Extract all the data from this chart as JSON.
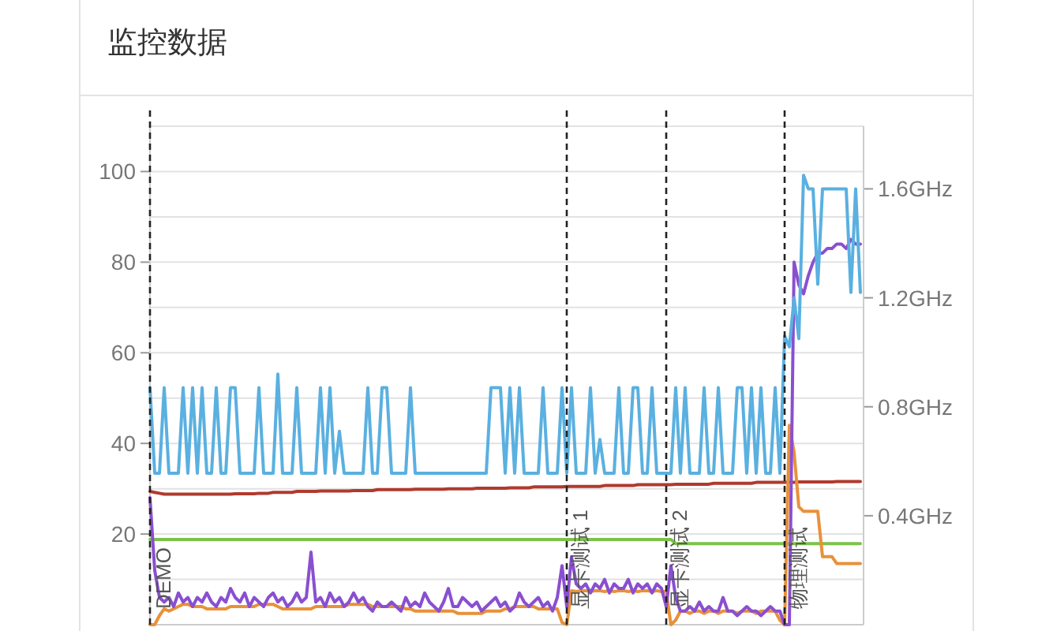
{
  "chart_data": {
    "type": "line",
    "title": "监控数据",
    "categories": [
      null,
      null,
      null,
      null,
      null,
      null,
      null,
      null,
      null,
      null,
      null,
      null,
      null,
      null,
      null,
      null,
      null,
      null,
      null,
      null,
      null,
      null,
      null,
      null,
      null,
      null,
      null,
      null,
      null,
      null,
      null,
      null,
      null,
      null,
      null,
      null,
      null,
      null,
      null,
      null,
      null,
      null,
      null,
      null,
      null,
      null,
      null,
      null,
      null,
      null,
      null,
      null,
      null,
      null,
      null,
      null,
      null,
      null,
      null,
      null,
      null,
      null,
      null,
      null,
      null,
      null,
      null,
      null,
      null,
      null,
      null,
      null,
      null,
      null,
      null,
      null,
      null,
      null,
      null,
      null,
      null,
      null,
      null,
      null,
      null,
      null,
      null,
      null,
      null,
      null,
      null,
      null,
      null,
      null,
      null,
      null,
      null,
      null,
      null,
      null,
      null,
      null,
      null,
      null,
      null,
      null,
      null,
      null,
      null,
      null,
      null,
      null,
      null,
      null,
      null,
      null,
      null,
      null,
      null,
      null,
      null,
      null,
      null,
      null,
      null,
      null,
      null,
      null,
      null,
      null,
      null,
      null,
      null,
      null,
      null,
      null,
      null,
      null,
      null,
      null,
      null,
      null,
      null,
      null,
      null,
      null,
      null,
      null,
      null,
      null,
      null
    ],
    "ylim": [
      0,
      110
    ],
    "yticks": [
      {
        "value": 0,
        "label": null
      },
      {
        "value": 10,
        "label": null
      },
      20,
      {
        "value": 30,
        "label": null
      },
      40,
      {
        "value": 50,
        "label": null
      },
      60,
      {
        "value": 70,
        "label": null
      },
      80,
      {
        "value": 90,
        "label": null
      },
      100,
      {
        "value": 110,
        "label": null
      }
    ],
    "y2lim": [
      0,
      1.83
    ],
    "y2ticks": [
      {
        "value": 0.4,
        "label": "0.4GHz"
      },
      {
        "value": 0.8,
        "label": "0.8GHz"
      },
      {
        "value": 1.2,
        "label": "1.2GHz"
      },
      {
        "value": 1.6,
        "label": "1.6GHz"
      }
    ],
    "grid": "y",
    "annotations": [
      "DEMO",
      "显卡测试 1",
      "显卡测试 2",
      "物理测试"
    ],
    "series": [
      {
        "color": "#b03a2e",
        "values": [
          29.4,
          29.2,
          29.0,
          28.8,
          28.8,
          28.8,
          28.8,
          28.8,
          28.8,
          28.8,
          28.8,
          28.8,
          28.8,
          28.8,
          28.8,
          28.8,
          28.8,
          28.8,
          28.9,
          28.9,
          28.9,
          28.9,
          28.9,
          29.0,
          29.0,
          29.0,
          29.2,
          29.2,
          29.2,
          29.2,
          29.2,
          29.4,
          29.4,
          29.4,
          29.4,
          29.4,
          29.5,
          29.5,
          29.5,
          29.5,
          29.5,
          29.5,
          29.5,
          29.6,
          29.6,
          29.6,
          29.6,
          29.6,
          29.8,
          29.8,
          29.8,
          29.8,
          29.8,
          29.8,
          29.8,
          29.8,
          29.9,
          29.9,
          29.9,
          29.9,
          29.9,
          29.9,
          29.9,
          30.0,
          30.0,
          30.0,
          30.0,
          30.0,
          30.0,
          30.1,
          30.1,
          30.1,
          30.1,
          30.1,
          30.1,
          30.1,
          30.2,
          30.2,
          30.2,
          30.2,
          30.2,
          30.4,
          30.4,
          30.4,
          30.4,
          30.4,
          30.4,
          30.4,
          30.5,
          30.5,
          30.5,
          30.5,
          30.5,
          30.5,
          30.5,
          30.5,
          30.7,
          30.7,
          30.7,
          30.7,
          30.7,
          30.7,
          30.7,
          30.9,
          30.9,
          30.9,
          30.9,
          30.9,
          30.9,
          30.9,
          30.9,
          31.0,
          31.0,
          31.0,
          31.0,
          31.0,
          31.0,
          31.0,
          31.0,
          31.2,
          31.2,
          31.2,
          31.2,
          31.2,
          31.2,
          31.2,
          31.2,
          31.2,
          31.4,
          31.4,
          31.4,
          31.4,
          31.4,
          31.4,
          31.4,
          31.4,
          31.4,
          31.5,
          31.5,
          31.5,
          31.5,
          31.5,
          31.5,
          31.5,
          31.5,
          31.6,
          31.6,
          31.6,
          31.6,
          31.6,
          31.6
        ]
      },
      {
        "color": "#7cc24a",
        "values": [
          18.8,
          18.8,
          18.8,
          18.8,
          18.8,
          18.8,
          18.8,
          18.8,
          18.8,
          18.8,
          18.8,
          18.8,
          18.8,
          18.8,
          18.8,
          18.8,
          18.8,
          18.8,
          18.8,
          18.8,
          18.8,
          18.8,
          18.8,
          18.8,
          18.8,
          18.8,
          18.8,
          18.8,
          18.8,
          18.8,
          18.8,
          18.8,
          18.8,
          18.8,
          18.8,
          18.8,
          18.8,
          18.8,
          18.8,
          18.8,
          18.8,
          18.8,
          18.8,
          18.8,
          18.8,
          18.8,
          18.8,
          18.8,
          18.8,
          18.8,
          18.8,
          18.8,
          18.8,
          18.8,
          18.8,
          18.8,
          18.8,
          18.8,
          18.8,
          18.8,
          18.8,
          18.8,
          18.8,
          18.8,
          18.8,
          18.8,
          18.8,
          18.8,
          18.8,
          18.8,
          18.8,
          18.8,
          18.8,
          18.8,
          18.8,
          18.8,
          18.8,
          18.8,
          18.8,
          18.8,
          18.8,
          18.8,
          18.8,
          18.8,
          18.8,
          18.8,
          18.8,
          18.8,
          18.8,
          18.8,
          18.8,
          18.8,
          18.8,
          18.8,
          18.8,
          18.8,
          18.8,
          18.8,
          18.8,
          18.8,
          18.8,
          18.8,
          18.8,
          18.8,
          18.8,
          18.8,
          18.8,
          18.8,
          18.8,
          18.8,
          18.8,
          17.9,
          17.9,
          17.9,
          17.9,
          17.9,
          17.9,
          17.9,
          17.9,
          17.9,
          17.9,
          17.9,
          17.9,
          17.9,
          17.9,
          17.9,
          17.9,
          17.9,
          17.9,
          17.9,
          17.9,
          17.9,
          17.9,
          17.9,
          17.9,
          17.9,
          17.9,
          17.9,
          17.9,
          17.9,
          17.9,
          17.9,
          17.9,
          17.9,
          17.9,
          17.9,
          17.9,
          17.9,
          17.9,
          17.9,
          17.9
        ]
      },
      {
        "color": "#e8913a",
        "values": [
          0,
          0,
          2,
          3.5,
          3,
          3.5,
          4,
          4.5,
          4.5,
          4,
          4,
          4,
          3.5,
          3.5,
          3.5,
          3.5,
          3.5,
          4,
          4,
          4,
          4,
          4,
          4,
          4.5,
          4.5,
          4.5,
          4.5,
          4,
          3.5,
          3.5,
          3.5,
          3.5,
          3.5,
          3.5,
          3.5,
          4,
          4,
          4,
          4,
          4,
          4,
          4,
          4.5,
          4.5,
          4.5,
          4.5,
          4.5,
          4,
          4,
          4,
          4,
          4,
          4,
          4,
          3.5,
          3.5,
          3,
          3,
          3,
          3,
          3,
          3,
          3,
          3,
          3,
          2.5,
          2.5,
          2.5,
          2.5,
          2.5,
          2.5,
          3,
          3,
          3,
          3,
          3.5,
          3.5,
          4,
          4,
          4,
          4,
          4,
          3.5,
          3.5,
          3.5,
          3.5,
          3.5,
          0.5,
          0,
          7.5,
          7.3,
          7.5,
          7.5,
          7.3,
          7.5,
          7.5,
          7.3,
          7.5,
          7.3,
          7.5,
          7.5,
          7.3,
          7.5,
          7.3,
          7.5,
          7.5,
          7.3,
          7.5,
          7.3,
          7.3,
          0,
          1,
          3,
          3,
          2.5,
          3,
          3,
          2.5,
          3,
          3,
          2.5,
          3,
          3,
          3,
          2.5,
          3,
          3,
          3,
          2.5,
          3,
          3,
          3,
          3,
          1,
          0,
          44,
          38,
          26,
          25,
          25,
          25,
          25,
          15,
          15,
          15,
          13.5,
          13.5,
          13.5,
          13.5,
          13.5,
          13.5
        ]
      },
      {
        "color": "#8a4fd0",
        "values": [
          28,
          12,
          6,
          5,
          6,
          4,
          7,
          5,
          6,
          4,
          6,
          5,
          7,
          5,
          4,
          6,
          5,
          8,
          6,
          5,
          7,
          4,
          6,
          5,
          4,
          6,
          7,
          5,
          6,
          4,
          5,
          7,
          5,
          6,
          16,
          5,
          6,
          4,
          7,
          5,
          6,
          4,
          5,
          7,
          5,
          6,
          4,
          3,
          5,
          4,
          4,
          5,
          4,
          3,
          6,
          4,
          5,
          4,
          7,
          5,
          4,
          3,
          5,
          8,
          4,
          4,
          6,
          5,
          4,
          5,
          3,
          4,
          5,
          6,
          4,
          5,
          3,
          4,
          7,
          5,
          4,
          5,
          6,
          4,
          5,
          3,
          6,
          13,
          4,
          15,
          9,
          8,
          9,
          7,
          9,
          8,
          10,
          7,
          9,
          8,
          8,
          10,
          7,
          9,
          8,
          9,
          7,
          9,
          8,
          4,
          13,
          6,
          3,
          3,
          4,
          3,
          5,
          3,
          4,
          3,
          3,
          6,
          3,
          3,
          2,
          3,
          4,
          3,
          3,
          2,
          3,
          4,
          3,
          3,
          0,
          0,
          80,
          75,
          73,
          77,
          80,
          82,
          82,
          83,
          83,
          84,
          84,
          83,
          85,
          84,
          84
        ]
      },
      {
        "color": "#5ab0e0",
        "axis": "y2",
        "values": [
          0.87,
          0.556,
          0.556,
          0.87,
          0.556,
          0.556,
          0.556,
          0.87,
          0.556,
          0.87,
          0.556,
          0.87,
          0.556,
          0.556,
          0.87,
          0.556,
          0.556,
          0.87,
          0.87,
          0.556,
          0.556,
          0.556,
          0.556,
          0.87,
          0.556,
          0.556,
          0.556,
          0.92,
          0.556,
          0.556,
          0.556,
          0.87,
          0.556,
          0.556,
          0.556,
          0.556,
          0.87,
          0.556,
          0.87,
          0.556,
          0.71,
          0.556,
          0.556,
          0.556,
          0.556,
          0.556,
          0.87,
          0.556,
          0.556,
          0.87,
          0.87,
          0.556,
          0.556,
          0.556,
          0.556,
          0.87,
          0.556,
          0.556,
          0.556,
          0.556,
          0.556,
          0.556,
          0.556,
          0.556,
          0.556,
          0.556,
          0.556,
          0.556,
          0.556,
          0.556,
          0.556,
          0.556,
          0.87,
          0.87,
          0.87,
          0.556,
          0.87,
          0.556,
          0.87,
          0.556,
          0.556,
          0.556,
          0.556,
          0.87,
          0.556,
          0.556,
          0.556,
          0.87,
          0.556,
          0.87,
          0.556,
          0.556,
          0.556,
          0.87,
          0.556,
          0.68,
          0.556,
          0.556,
          0.556,
          0.87,
          0.556,
          0.556,
          0.87,
          0.87,
          0.556,
          0.556,
          0.87,
          0.556,
          0.556,
          0.556,
          0.556,
          0.87,
          0.556,
          0.87,
          0.556,
          0.556,
          0.556,
          0.87,
          0.556,
          0.556,
          0.87,
          0.556,
          0.556,
          0.556,
          0.87,
          0.87,
          0.556,
          0.87,
          0.556,
          0.87,
          0.556,
          0.556,
          0.87,
          0.556,
          1.06,
          1.02,
          1.2,
          1.05,
          1.65,
          1.6,
          1.6,
          1.25,
          1.6,
          1.6,
          1.6,
          1.6,
          1.6,
          1.6,
          1.22,
          1.6,
          1.22
        ]
      }
    ]
  }
}
